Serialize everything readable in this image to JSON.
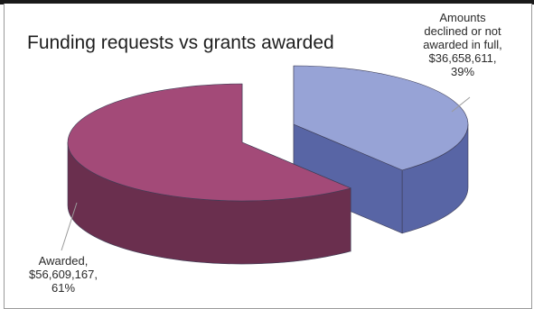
{
  "chart_data": {
    "type": "pie",
    "style": "3d-exploded",
    "title": "Funding requests vs grants awarded",
    "slices": [
      {
        "label_lines": [
          "Amounts",
          "declined or not",
          "awarded in full,",
          "$36,658,611,",
          "39%"
        ],
        "value": 36658611,
        "percent": 39,
        "color_top": "#97a3d6",
        "color_side": "#5865a5"
      },
      {
        "label_lines": [
          "Awarded,",
          "$56,609,167,",
          "61%"
        ],
        "value": 56609167,
        "percent": 61,
        "color_top": "#a34a78",
        "color_side": "#6a2f4e"
      }
    ]
  }
}
